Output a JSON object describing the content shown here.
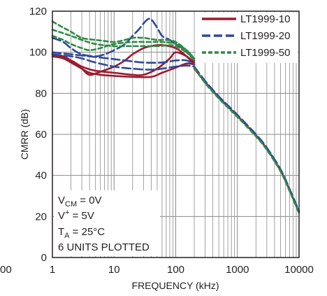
{
  "chart_data": {
    "type": "line",
    "title": "",
    "xlabel": "FREQUENCY (kHz)",
    "ylabel": "CMRR (dB)",
    "x_scale": "log",
    "xlim": [
      1,
      10000
    ],
    "ylim": [
      0,
      120
    ],
    "x_ticks": [
      "1",
      "10",
      "100",
      "1000",
      "10000"
    ],
    "x_ticks_cut": [
      "00"
    ],
    "y_ticks": [
      "0",
      "20",
      "40",
      "60",
      "80",
      "100",
      "120"
    ],
    "grid": true,
    "legend_position": "top-right",
    "conditions": {
      "vcm": {
        "main": "V",
        "sub": "CM",
        "rest": " = 0V"
      },
      "vplus": {
        "main": "V",
        "sup": "+",
        "rest": " = 5V"
      },
      "ta": {
        "main": "T",
        "sub": "A",
        "rest": " = 25°C"
      },
      "units": "6 UNITS PLOTTED"
    },
    "series": [
      {
        "name": "LT1999-10",
        "color": "#9b1b30",
        "dash": "solid",
        "curves": [
          {
            "x": [
              1,
              1.5,
              2,
              3,
              4,
              6,
              10,
              20,
              40,
              60,
              100,
              150,
              200
            ],
            "y": [
              98,
              97,
              95,
              92,
              90,
              89,
              88.5,
              88,
              88,
              90,
              92.5,
              94.5,
              94
            ]
          },
          {
            "x": [
              1,
              1.5,
              2,
              3,
              4,
              6,
              10,
              15,
              20,
              30,
              40,
              60,
              100,
              150,
              200
            ],
            "y": [
              99,
              98,
              96,
              92,
              89,
              90.5,
              93,
              96,
              99,
              102,
              103,
              103.5,
              102,
              98,
              94
            ]
          },
          {
            "x": [
              1,
              2,
              3,
              5,
              10,
              20,
              30,
              50,
              80,
              100,
              150,
              200
            ],
            "y": [
              99,
              96,
              93,
              91,
              90,
              89,
              89,
              92,
              97,
              100,
              98,
              95
            ]
          },
          {
            "x": [
              200,
              300,
              500,
              1000,
              2000,
              3000,
              5000,
              7000,
              10000
            ],
            "y": [
              92,
              85.5,
              78,
              69,
              59.5,
              53,
              42.5,
              33,
              22
            ]
          }
        ]
      },
      {
        "name": "LT1999-20",
        "color": "#2e4a9a",
        "dash": "long",
        "curves": [
          {
            "x": [
              1,
              1.5,
              2,
              3,
              5,
              7,
              10,
              15,
              20,
              25,
              30,
              35,
              40,
              50,
              60,
              80,
              100,
              150,
              200
            ],
            "y": [
              107,
              105,
              102,
              99,
              98,
              99,
              101,
              104,
              108,
              111,
              114,
              116,
              116,
              112,
              108,
              106,
              104,
              101,
              96
            ]
          },
          {
            "x": [
              1,
              2,
              3,
              5,
              10,
              20,
              40,
              60,
              100,
              150,
              200
            ],
            "y": [
              99,
              98,
              97,
              95,
              93,
              92,
              91.5,
              92,
              93,
              93.5,
              93
            ]
          },
          {
            "x": [
              1,
              2,
              4,
              8,
              15,
              30,
              60,
              100,
              150,
              200
            ],
            "y": [
              100,
              99,
              98,
              97,
              96,
              95,
              95,
              96,
              96,
              94
            ]
          },
          {
            "x": [
              200,
              300,
              500,
              1000,
              2000,
              3000,
              5000,
              7000,
              10000
            ],
            "y": [
              93,
              86,
              78.5,
              69.5,
              60,
              53.5,
              43,
              33.5,
              22.5
            ]
          }
        ]
      },
      {
        "name": "LT1999-50",
        "color": "#2e8b45",
        "dash": "short",
        "curves": [
          {
            "x": [
              1,
              1.5,
              2,
              3,
              5,
              7,
              10,
              15,
              20,
              30,
              50,
              70,
              100,
              150,
              200
            ],
            "y": [
              115,
              112,
              110,
              107,
              106,
              105.5,
              105,
              106,
              107,
              107,
              106,
              106,
              105,
              101,
              97
            ]
          },
          {
            "x": [
              1,
              1.5,
              2,
              3,
              4,
              6,
              10,
              20,
              40,
              60,
              100,
              150,
              200
            ],
            "y": [
              108,
              106,
              104,
              102,
              101,
              102,
              104,
              105,
              105,
              105,
              104,
              100,
              96
            ]
          },
          {
            "x": [
              1,
              2,
              3,
              5,
              10,
              20,
              50,
              100,
              200
            ],
            "y": [
              111,
              108,
              106,
              104,
              103,
              103,
              103,
              103,
              97
            ]
          },
          {
            "x": [
              200,
              300,
              500,
              1000,
              2000,
              3000,
              5000,
              7000,
              10000
            ],
            "y": [
              92.5,
              85,
              77.5,
              68.5,
              59,
              52.5,
              42,
              32.5,
              21.5
            ]
          }
        ]
      }
    ]
  }
}
